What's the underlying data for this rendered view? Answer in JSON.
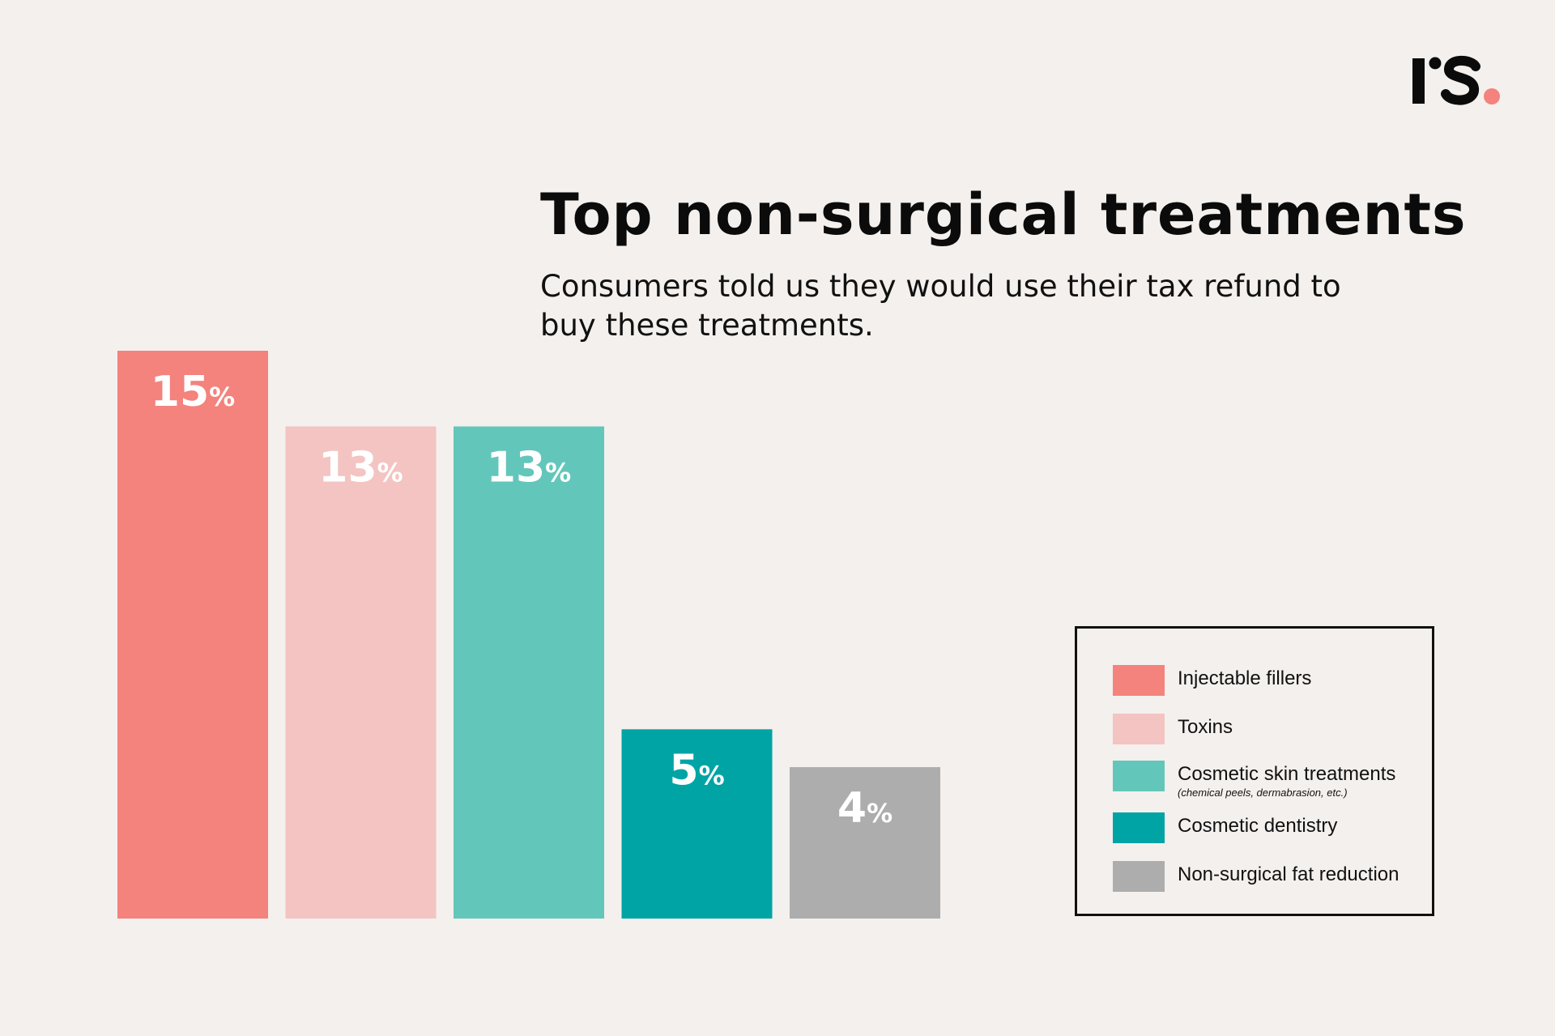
{
  "brand": {
    "logo_text": "rs.",
    "accent_color": "#f4827d"
  },
  "chart_data": {
    "type": "bar",
    "title": "Top non-surgical treatments",
    "subtitle": "Consumers told us they would use their tax refund to buy these treatments.",
    "categories": [
      "Injectable fillers",
      "Toxins",
      "Cosmetic skin treatments",
      "Cosmetic dentistry",
      "Non-surgical fat reduction"
    ],
    "values": [
      15,
      13,
      13,
      5,
      4
    ],
    "data_labels": [
      "15",
      "13",
      "13",
      "5",
      "4"
    ],
    "data_label_suffix": "%",
    "colors": [
      "#f4827d",
      "#f3c4c2",
      "#62c7ba",
      "#00a4a5",
      "#adadad"
    ],
    "xlabel": "",
    "ylabel": "",
    "ylim": [
      0,
      15
    ],
    "grid": false,
    "legend": {
      "position": "right",
      "items": [
        {
          "label": "Injectable fillers",
          "note": ""
        },
        {
          "label": "Toxins",
          "note": ""
        },
        {
          "label": "Cosmetic skin treatments",
          "note": "(chemical peels, dermabrasion, etc.)"
        },
        {
          "label": "Cosmetic dentistry",
          "note": ""
        },
        {
          "label": "Non-surgical fat reduction",
          "note": ""
        }
      ]
    }
  }
}
